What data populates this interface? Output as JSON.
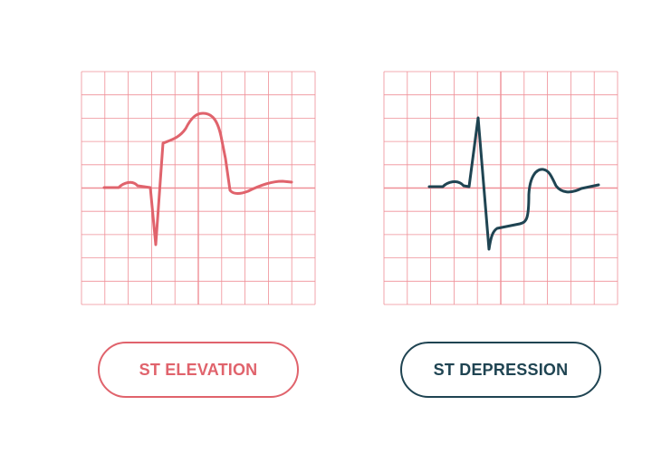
{
  "colors": {
    "grid": "#ef8f97",
    "elevation": "#e0636c",
    "depression": "#1f4452"
  },
  "panels": [
    {
      "id": "elevation",
      "label": "ST ELEVATION"
    },
    {
      "id": "depression",
      "label": "ST DEPRESSION"
    }
  ]
}
